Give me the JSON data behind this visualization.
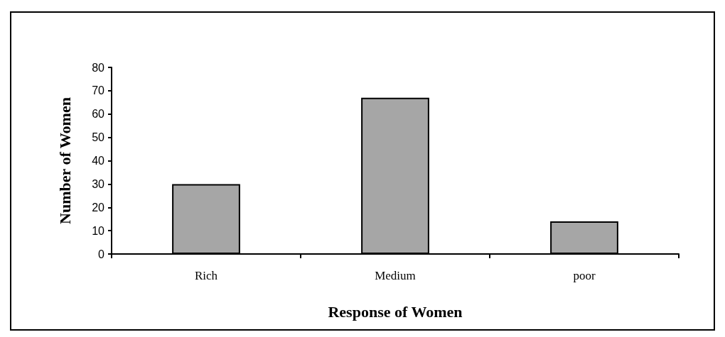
{
  "chart_data": {
    "type": "bar",
    "xlabel": "Response of Women",
    "ylabel": "Number of Women",
    "categories": [
      "Rich",
      "Medium",
      "poor"
    ],
    "values": [
      30,
      67,
      14
    ],
    "color": "#a6a6a6",
    "ylim": [
      0,
      80
    ],
    "yticks": [
      0,
      10,
      20,
      30,
      40,
      50,
      60,
      70,
      80
    ],
    "grid": false
  }
}
